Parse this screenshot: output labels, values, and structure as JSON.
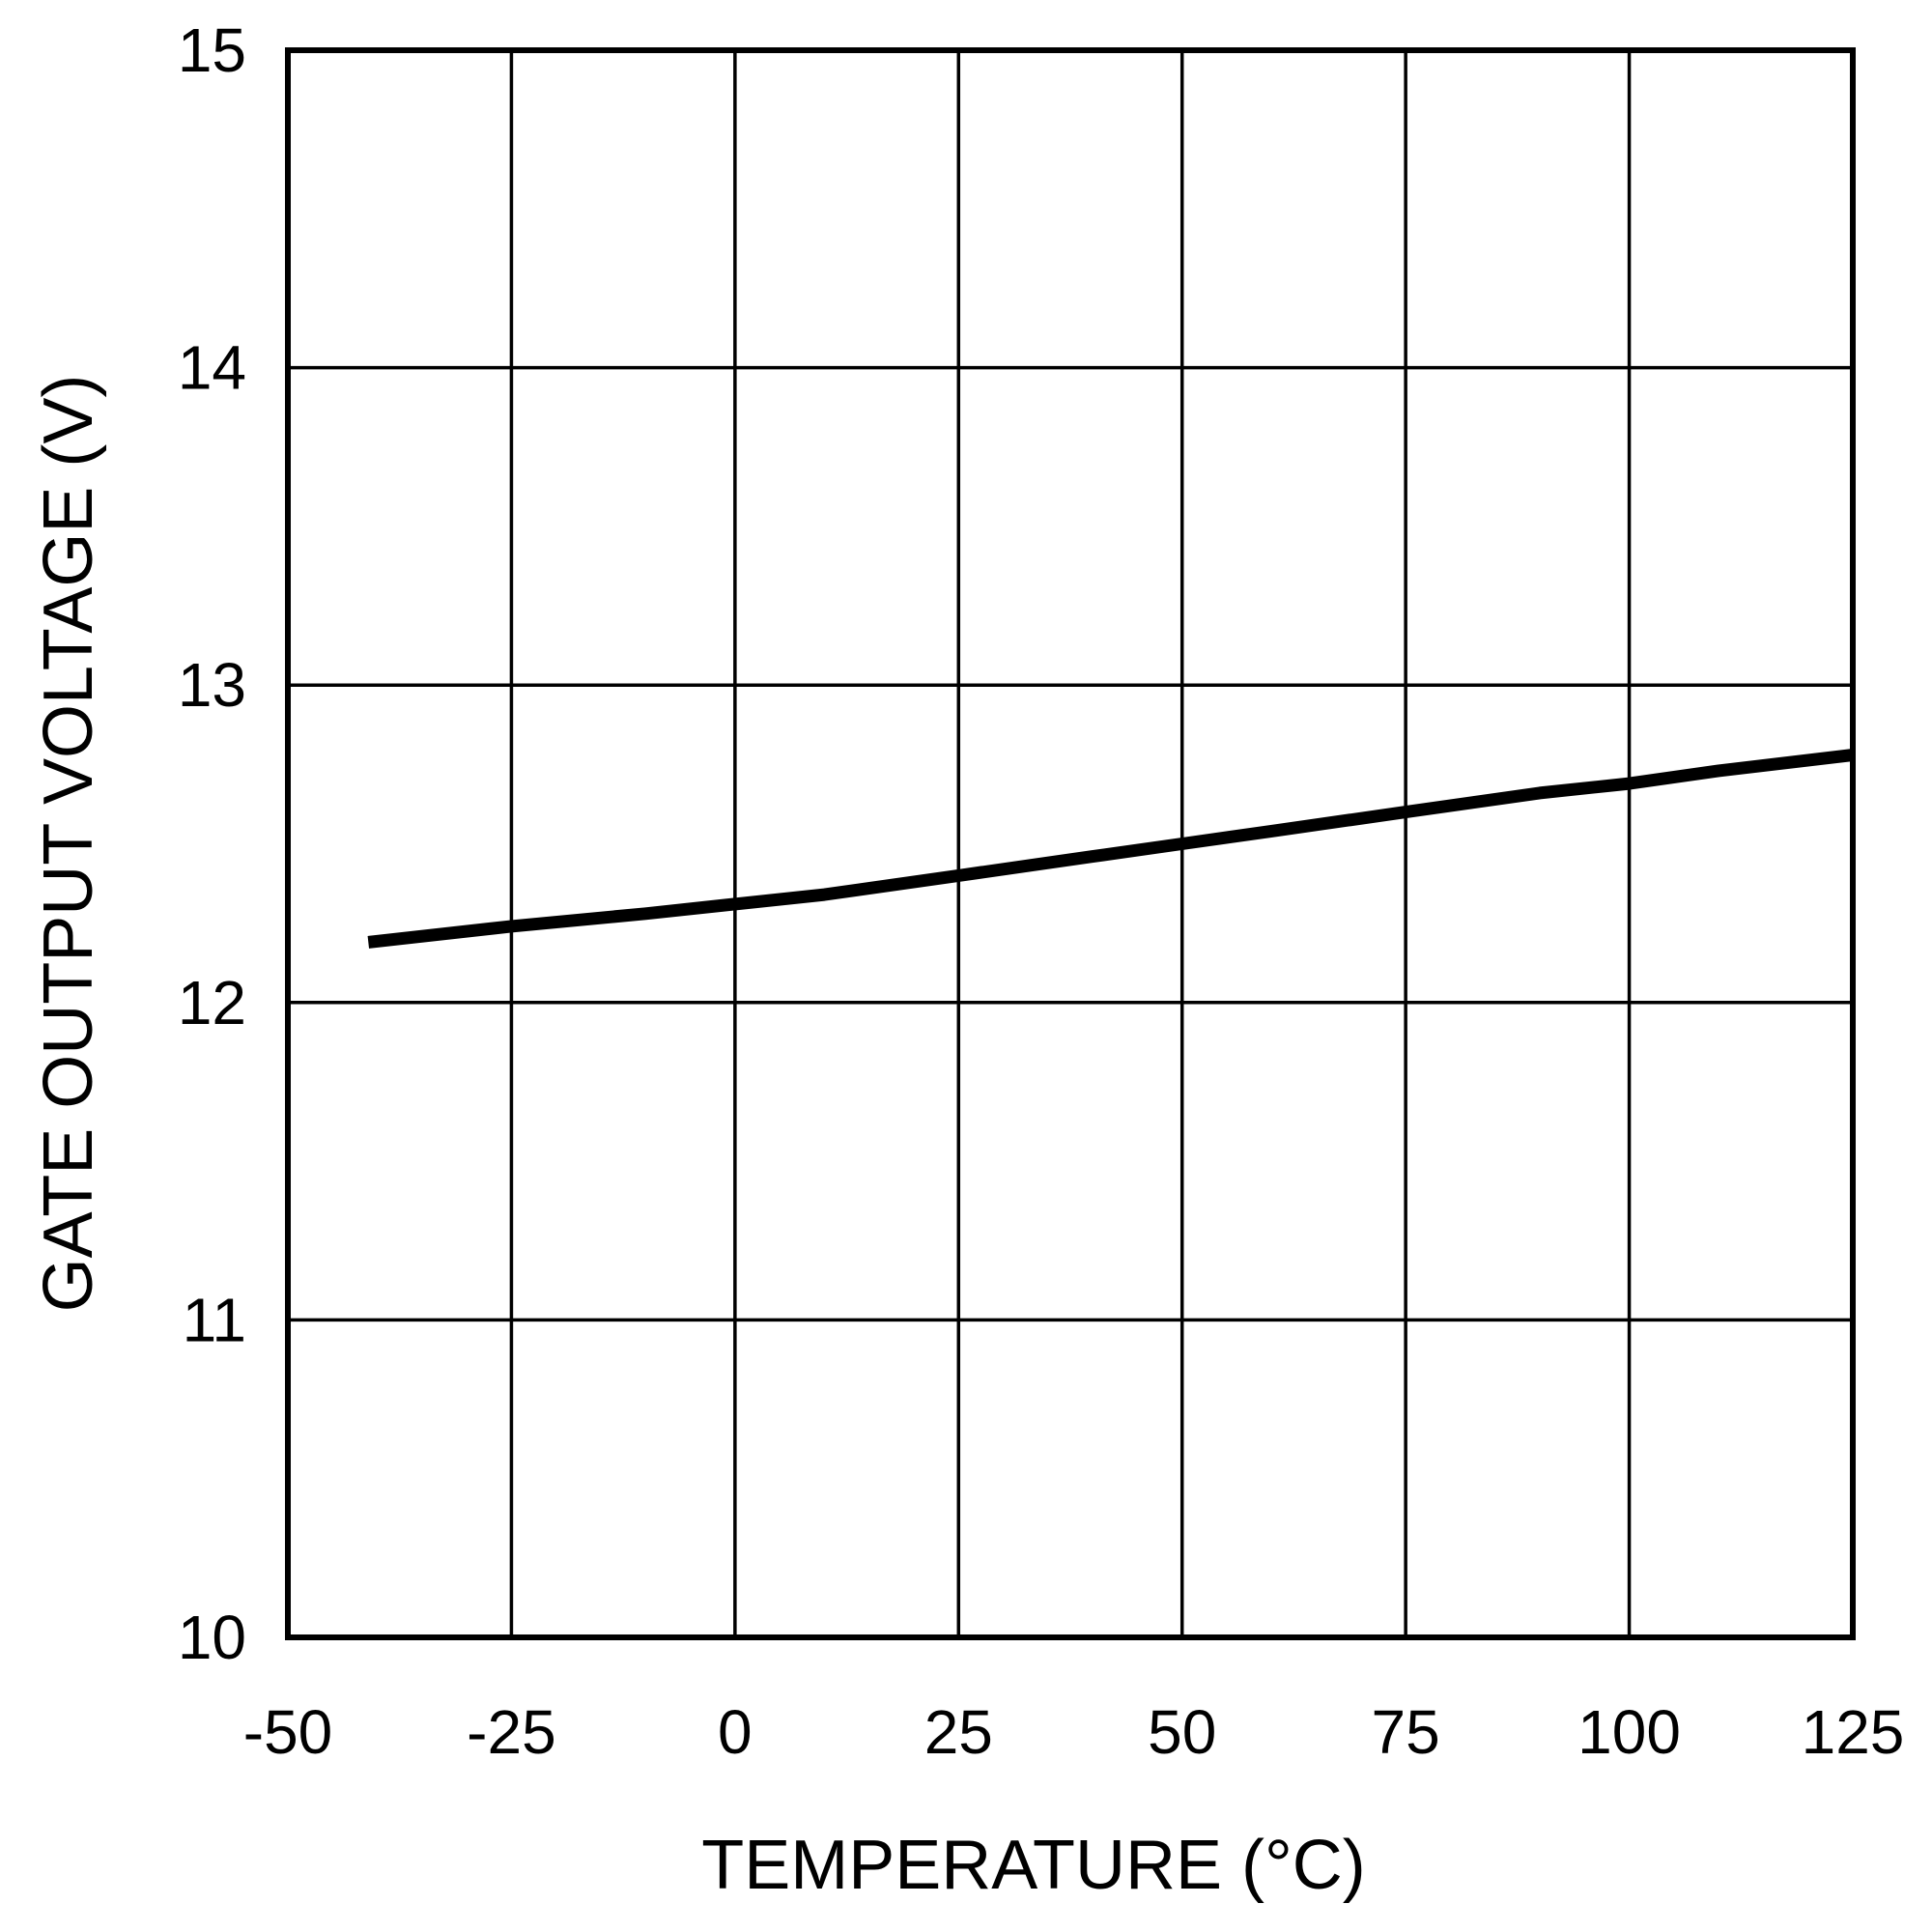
{
  "chart_data": {
    "type": "line",
    "title": "",
    "xlabel": "TEMPERATURE (°C)",
    "ylabel": "GATE OUTPUT VOLTAGE (V)",
    "xlim": [
      -50,
      125
    ],
    "ylim": [
      10,
      15
    ],
    "x_ticks": [
      "-50",
      "-25",
      "0",
      "25",
      "50",
      "75",
      "100",
      "125"
    ],
    "y_ticks": [
      "10",
      "11",
      "12",
      "13",
      "14",
      "15"
    ],
    "grid": true,
    "legend": "none",
    "series": [
      {
        "color": "#000000",
        "x": [
          -41,
          -25,
          -10,
          0,
          10,
          25,
          40,
          50,
          60,
          75,
          90,
          100,
          110,
          125
        ],
        "y": [
          12.19,
          12.24,
          12.28,
          12.31,
          12.34,
          12.4,
          12.46,
          12.5,
          12.54,
          12.6,
          12.66,
          12.69,
          12.73,
          12.78
        ]
      }
    ]
  }
}
